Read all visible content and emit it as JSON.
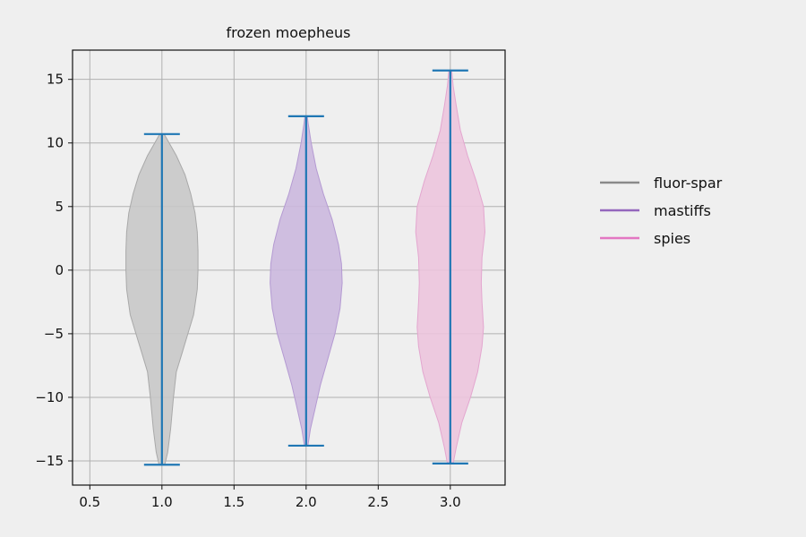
{
  "chart_data": {
    "type": "violin",
    "title": "frozen moepheus",
    "xlabel": "",
    "ylabel": "",
    "xlim": [
      0.38,
      3.38
    ],
    "ylim": [
      -16.9,
      17.3
    ],
    "xticks": [
      0.5,
      1.0,
      1.5,
      2.0,
      2.5,
      3.0
    ],
    "xtick_labels": [
      "0.5",
      "1.0",
      "1.5",
      "2.0",
      "2.5",
      "3.0"
    ],
    "yticks": [
      -15,
      -10,
      -5,
      0,
      5,
      10,
      15
    ],
    "ytick_labels": [
      "−15",
      "−10",
      "−5",
      "0",
      "5",
      "10",
      "15"
    ],
    "grid": true,
    "legend_position": "right",
    "series": [
      {
        "name": "fluor-spar",
        "position": 1.0,
        "min": -15.3,
        "max": 10.7,
        "fill_color": "#c8c8c8",
        "edge_color": "#a9a9a9",
        "legend_color": "#8a8a8a",
        "profile": [
          [
            -15.3,
            0.02
          ],
          [
            -14.3,
            0.04
          ],
          [
            -12.5,
            0.06
          ],
          [
            -10.0,
            0.08
          ],
          [
            -8.0,
            0.1
          ],
          [
            -6.5,
            0.14
          ],
          [
            -5.0,
            0.18
          ],
          [
            -3.5,
            0.22
          ],
          [
            -1.5,
            0.245
          ],
          [
            0.0,
            0.25
          ],
          [
            1.5,
            0.25
          ],
          [
            3.0,
            0.245
          ],
          [
            4.5,
            0.23
          ],
          [
            6.0,
            0.2
          ],
          [
            7.5,
            0.16
          ],
          [
            9.0,
            0.1
          ],
          [
            10.0,
            0.05
          ],
          [
            10.7,
            0.015
          ]
        ]
      },
      {
        "name": "mastiffs",
        "position": 2.0,
        "min": -13.8,
        "max": 12.1,
        "fill_color": "#cbb8de",
        "edge_color": "#b49ad2",
        "legend_color": "#9467bd",
        "profile": [
          [
            -13.8,
            0.012
          ],
          [
            -12.5,
            0.03
          ],
          [
            -11.0,
            0.06
          ],
          [
            -9.0,
            0.1
          ],
          [
            -7.0,
            0.15
          ],
          [
            -5.0,
            0.2
          ],
          [
            -3.0,
            0.235
          ],
          [
            -1.0,
            0.25
          ],
          [
            0.5,
            0.245
          ],
          [
            2.0,
            0.225
          ],
          [
            4.0,
            0.18
          ],
          [
            6.0,
            0.12
          ],
          [
            8.0,
            0.07
          ],
          [
            10.0,
            0.035
          ],
          [
            11.5,
            0.015
          ],
          [
            12.1,
            0.008
          ]
        ]
      },
      {
        "name": "spies",
        "position": 3.0,
        "min": -15.2,
        "max": 15.7,
        "fill_color": "#ecc4dd",
        "edge_color": "#e3a6cf",
        "legend_color": "#e377c2",
        "profile": [
          [
            -15.2,
            0.02
          ],
          [
            -14.0,
            0.04
          ],
          [
            -12.0,
            0.08
          ],
          [
            -10.0,
            0.14
          ],
          [
            -8.0,
            0.19
          ],
          [
            -6.0,
            0.22
          ],
          [
            -4.5,
            0.23
          ],
          [
            -2.5,
            0.22
          ],
          [
            -1.0,
            0.215
          ],
          [
            1.0,
            0.22
          ],
          [
            3.0,
            0.24
          ],
          [
            5.0,
            0.23
          ],
          [
            7.0,
            0.18
          ],
          [
            9.0,
            0.12
          ],
          [
            11.0,
            0.07
          ],
          [
            13.0,
            0.04
          ],
          [
            14.5,
            0.02
          ],
          [
            15.7,
            0.01
          ]
        ]
      }
    ],
    "whisker_color": "#1f77b4"
  }
}
